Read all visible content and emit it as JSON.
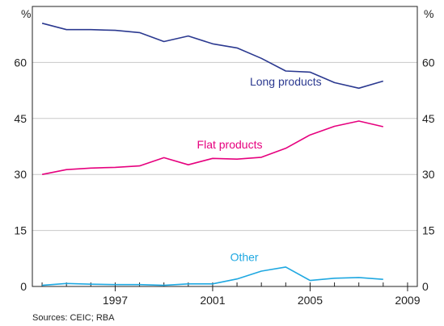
{
  "chart_data": {
    "type": "line",
    "x": [
      1994,
      1995,
      1996,
      1997,
      1998,
      1999,
      2000,
      2001,
      2002,
      2003,
      2004,
      2005,
      2006,
      2007,
      2008,
      2009
    ],
    "series": [
      {
        "name": "Long products",
        "color": "#2b3990",
        "values": [
          70.5,
          68.8,
          68.8,
          68.6,
          68.0,
          65.6,
          67.1,
          65.0,
          63.9,
          61.1,
          57.7,
          57.4,
          54.6,
          53.1,
          55.0,
          null
        ]
      },
      {
        "name": "Flat products",
        "color": "#e6007e",
        "values": [
          30.0,
          31.3,
          31.7,
          31.9,
          32.3,
          34.5,
          32.6,
          34.3,
          34.1,
          34.6,
          37.0,
          40.6,
          42.9,
          44.3,
          42.8,
          null
        ]
      },
      {
        "name": "Other",
        "color": "#1fa8e1",
        "values": [
          0.3,
          0.8,
          0.6,
          0.5,
          0.5,
          0.3,
          0.7,
          0.7,
          2.0,
          4.1,
          5.2,
          1.6,
          2.2,
          2.4,
          1.9,
          null
        ]
      }
    ],
    "y_left_label": "%",
    "y_right_label": "%",
    "ylim": [
      0,
      75
    ],
    "yticks": [
      0,
      15,
      30,
      45,
      60
    ],
    "xlim": [
      1993.6,
      2009.4
    ],
    "xtick_labels": [
      {
        "value": 1997,
        "label": "1997"
      },
      {
        "value": 2001,
        "label": "2001"
      },
      {
        "value": 2005,
        "label": "2005"
      },
      {
        "value": 2009,
        "label": "2009"
      }
    ],
    "minor_x_ticks": [
      1994,
      1995,
      1996,
      1997,
      1998,
      1999,
      2000,
      2001,
      2002,
      2003,
      2004,
      2005,
      2006,
      2007,
      2008,
      2009
    ],
    "grid": true,
    "source": "Sources: CEIC; RBA"
  }
}
